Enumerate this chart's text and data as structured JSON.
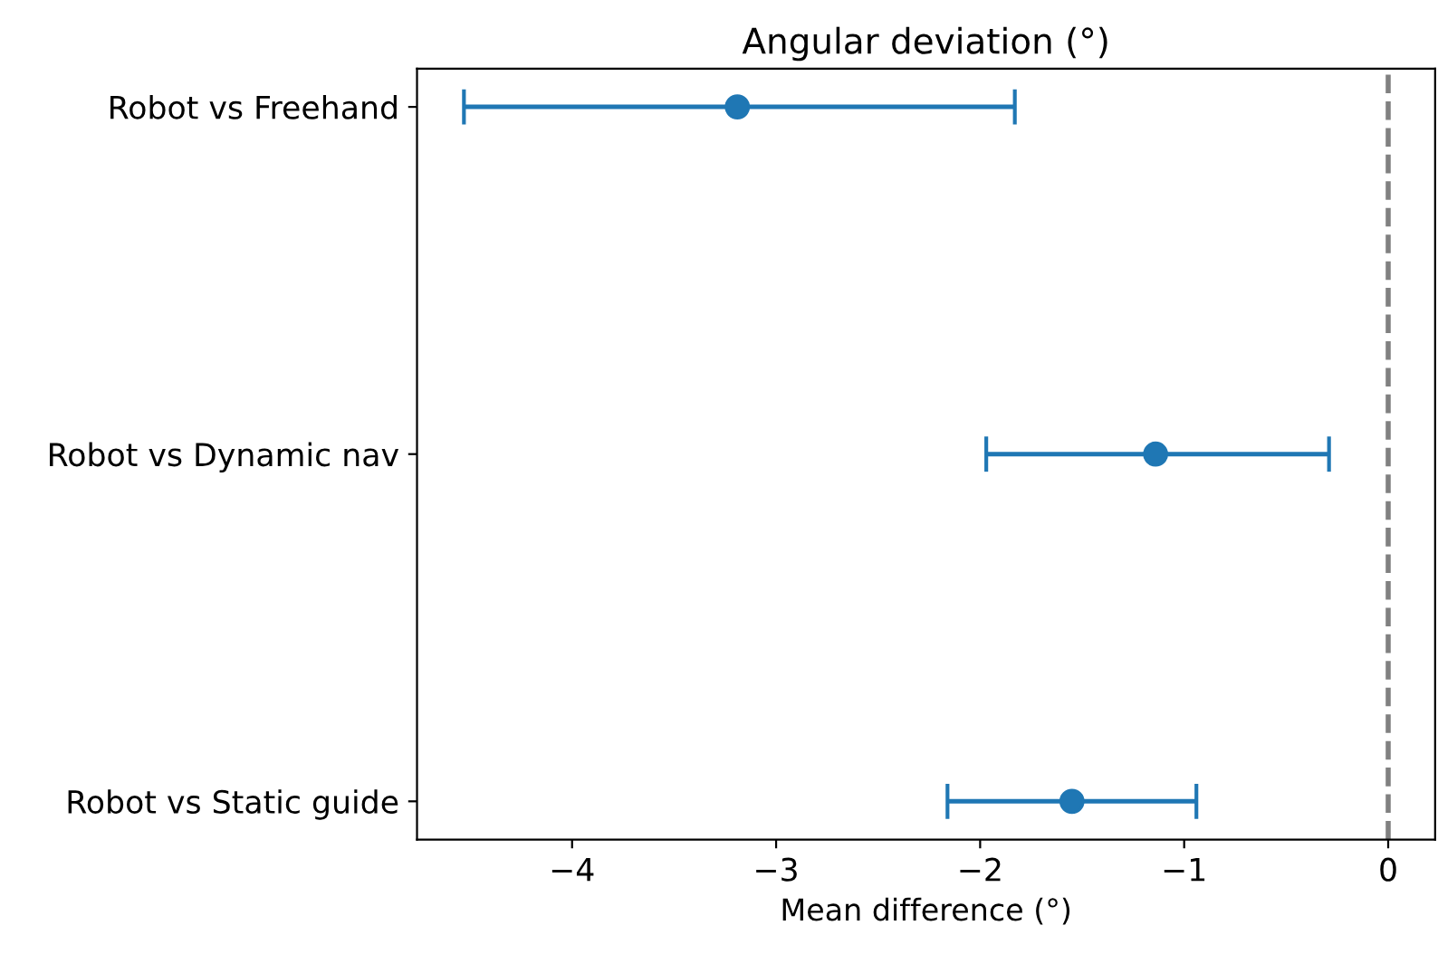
{
  "chart_data": {
    "type": "scatter",
    "orientation": "horizontal",
    "title": "Angular deviation (°)",
    "xlabel": "Mean difference (°)",
    "categories": [
      "Robot vs Freehand",
      "Robot vs Dynamic nav",
      "Robot vs Static guide"
    ],
    "color": "#1f77b4",
    "values": [
      -3.19,
      -1.14,
      -1.55
    ],
    "errors": [
      [
        -4.53,
        -1.83
      ],
      [
        -1.97,
        -0.29
      ],
      [
        -2.16,
        -0.94
      ]
    ],
    "xlim": [
      -4.76,
      0.23
    ],
    "xticks": [
      {
        "value": -4,
        "label": "−4"
      },
      {
        "value": -3,
        "label": "−3"
      },
      {
        "value": -2,
        "label": "−2"
      },
      {
        "value": -1,
        "label": "−1"
      },
      0
    ],
    "ref_lines": [
      {
        "axis": "x",
        "value": 0,
        "color": "#808080",
        "line_style": "dashed"
      }
    ],
    "marker": "circle",
    "grid": false
  }
}
